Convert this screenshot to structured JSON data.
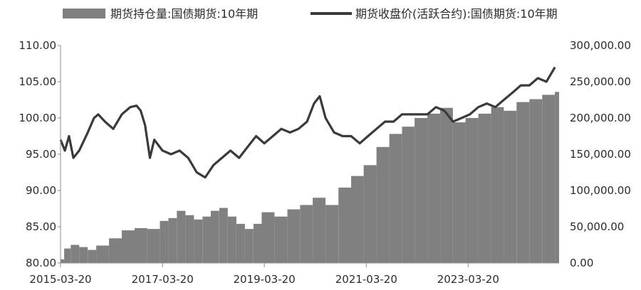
{
  "chart_data": {
    "type": "bar+line",
    "legend": {
      "placement": "top",
      "bar_label": "期货持仓量:国债期货:10年期",
      "line_label": "期货收盘价(活跃合约):国债期货:10年期"
    },
    "x_ticks": [
      "2015-03-20",
      "2017-03-20",
      "2019-03-20",
      "2021-03-20",
      "2023-03-20"
    ],
    "x_range": [
      "2015-03-20",
      "2024-12-31"
    ],
    "y_left": {
      "range": [
        80,
        110
      ],
      "ticks": [
        "80.00",
        "85.00",
        "90.00",
        "95.00",
        "100.00",
        "105.00",
        "110.00"
      ]
    },
    "y_right": {
      "range": [
        0,
        300000
      ],
      "ticks": [
        "0.00",
        "50,000.00",
        "100,000.00",
        "150,000.00",
        "200,000.00",
        "250,000.00",
        "300,000.00"
      ]
    },
    "grid": false,
    "colors": {
      "bars": "#808080",
      "line": "#3a3a3a",
      "axis": "#8c8c8c"
    },
    "series": [
      {
        "name": "期货持仓量:国债期货:10年期",
        "axis": "right",
        "kind": "bar",
        "points": [
          [
            "2015-03-20",
            5000
          ],
          [
            "2015-04-15",
            20000
          ],
          [
            "2015-06-01",
            25000
          ],
          [
            "2015-08-01",
            22000
          ],
          [
            "2015-10-01",
            18000
          ],
          [
            "2015-12-01",
            24000
          ],
          [
            "2016-03-01",
            34000
          ],
          [
            "2016-06-01",
            45000
          ],
          [
            "2016-09-01",
            48000
          ],
          [
            "2016-12-01",
            47000
          ],
          [
            "2017-03-01",
            58000
          ],
          [
            "2017-05-01",
            62000
          ],
          [
            "2017-07-01",
            72000
          ],
          [
            "2017-09-01",
            66000
          ],
          [
            "2017-11-01",
            60000
          ],
          [
            "2018-01-01",
            64000
          ],
          [
            "2018-03-01",
            72000
          ],
          [
            "2018-05-01",
            76000
          ],
          [
            "2018-07-01",
            64000
          ],
          [
            "2018-09-01",
            54000
          ],
          [
            "2018-11-01",
            47000
          ],
          [
            "2019-01-01",
            54000
          ],
          [
            "2019-03-01",
            70000
          ],
          [
            "2019-06-01",
            64000
          ],
          [
            "2019-09-01",
            74000
          ],
          [
            "2019-12-01",
            80000
          ],
          [
            "2020-03-01",
            90000
          ],
          [
            "2020-06-01",
            80000
          ],
          [
            "2020-09-01",
            104000
          ],
          [
            "2020-12-01",
            120000
          ],
          [
            "2021-03-01",
            135000
          ],
          [
            "2021-06-01",
            160000
          ],
          [
            "2021-09-01",
            178000
          ],
          [
            "2021-12-01",
            188000
          ],
          [
            "2022-03-01",
            200000
          ],
          [
            "2022-06-01",
            206000
          ],
          [
            "2022-09-01",
            214000
          ],
          [
            "2022-12-01",
            194000
          ],
          [
            "2023-03-01",
            200000
          ],
          [
            "2023-06-01",
            206000
          ],
          [
            "2023-09-01",
            215000
          ],
          [
            "2023-12-01",
            210000
          ],
          [
            "2024-03-01",
            222000
          ],
          [
            "2024-06-01",
            226000
          ],
          [
            "2024-09-01",
            232000
          ],
          [
            "2024-12-01",
            236000
          ]
        ]
      },
      {
        "name": "期货收盘价(活跃合约):国债期货:10年期",
        "axis": "left",
        "kind": "line",
        "points": [
          [
            "2015-03-20",
            97.0
          ],
          [
            "2015-04-20",
            95.5
          ],
          [
            "2015-05-20",
            97.5
          ],
          [
            "2015-06-20",
            94.5
          ],
          [
            "2015-08-01",
            95.5
          ],
          [
            "2015-10-01",
            98.0
          ],
          [
            "2015-11-15",
            100.0
          ],
          [
            "2015-12-15",
            100.5
          ],
          [
            "2016-02-01",
            99.5
          ],
          [
            "2016-04-01",
            98.5
          ],
          [
            "2016-06-01",
            100.5
          ],
          [
            "2016-08-01",
            101.5
          ],
          [
            "2016-09-15",
            101.7
          ],
          [
            "2016-10-15",
            101.0
          ],
          [
            "2016-11-15",
            99.0
          ],
          [
            "2016-12-20",
            94.5
          ],
          [
            "2017-01-20",
            97.0
          ],
          [
            "2017-03-20",
            95.5
          ],
          [
            "2017-05-20",
            95.0
          ],
          [
            "2017-07-20",
            95.5
          ],
          [
            "2017-09-20",
            94.5
          ],
          [
            "2017-11-20",
            92.5
          ],
          [
            "2018-01-20",
            91.8
          ],
          [
            "2018-03-20",
            93.5
          ],
          [
            "2018-05-20",
            94.5
          ],
          [
            "2018-07-20",
            95.5
          ],
          [
            "2018-09-20",
            94.5
          ],
          [
            "2018-11-20",
            96.0
          ],
          [
            "2019-01-20",
            97.5
          ],
          [
            "2019-03-20",
            96.5
          ],
          [
            "2019-05-20",
            97.5
          ],
          [
            "2019-07-20",
            98.5
          ],
          [
            "2019-09-20",
            98.0
          ],
          [
            "2019-11-20",
            98.5
          ],
          [
            "2020-01-20",
            99.5
          ],
          [
            "2020-03-10",
            102.0
          ],
          [
            "2020-04-20",
            103.0
          ],
          [
            "2020-06-01",
            100.0
          ],
          [
            "2020-08-01",
            98.0
          ],
          [
            "2020-10-01",
            97.5
          ],
          [
            "2020-12-01",
            97.5
          ],
          [
            "2021-02-01",
            96.5
          ],
          [
            "2021-04-01",
            97.5
          ],
          [
            "2021-06-01",
            98.5
          ],
          [
            "2021-08-01",
            99.5
          ],
          [
            "2021-10-01",
            99.5
          ],
          [
            "2021-12-01",
            100.5
          ],
          [
            "2022-02-01",
            100.5
          ],
          [
            "2022-04-01",
            100.5
          ],
          [
            "2022-06-01",
            100.5
          ],
          [
            "2022-08-01",
            101.5
          ],
          [
            "2022-10-01",
            101.0
          ],
          [
            "2022-12-01",
            99.5
          ],
          [
            "2023-02-01",
            100.0
          ],
          [
            "2023-04-01",
            100.5
          ],
          [
            "2023-06-01",
            101.5
          ],
          [
            "2023-08-01",
            102.0
          ],
          [
            "2023-10-01",
            101.5
          ],
          [
            "2023-12-01",
            102.5
          ],
          [
            "2024-02-01",
            103.5
          ],
          [
            "2024-04-01",
            104.5
          ],
          [
            "2024-06-01",
            104.5
          ],
          [
            "2024-08-01",
            105.5
          ],
          [
            "2024-10-01",
            105.0
          ],
          [
            "2024-12-01",
            107.0
          ]
        ]
      }
    ]
  }
}
